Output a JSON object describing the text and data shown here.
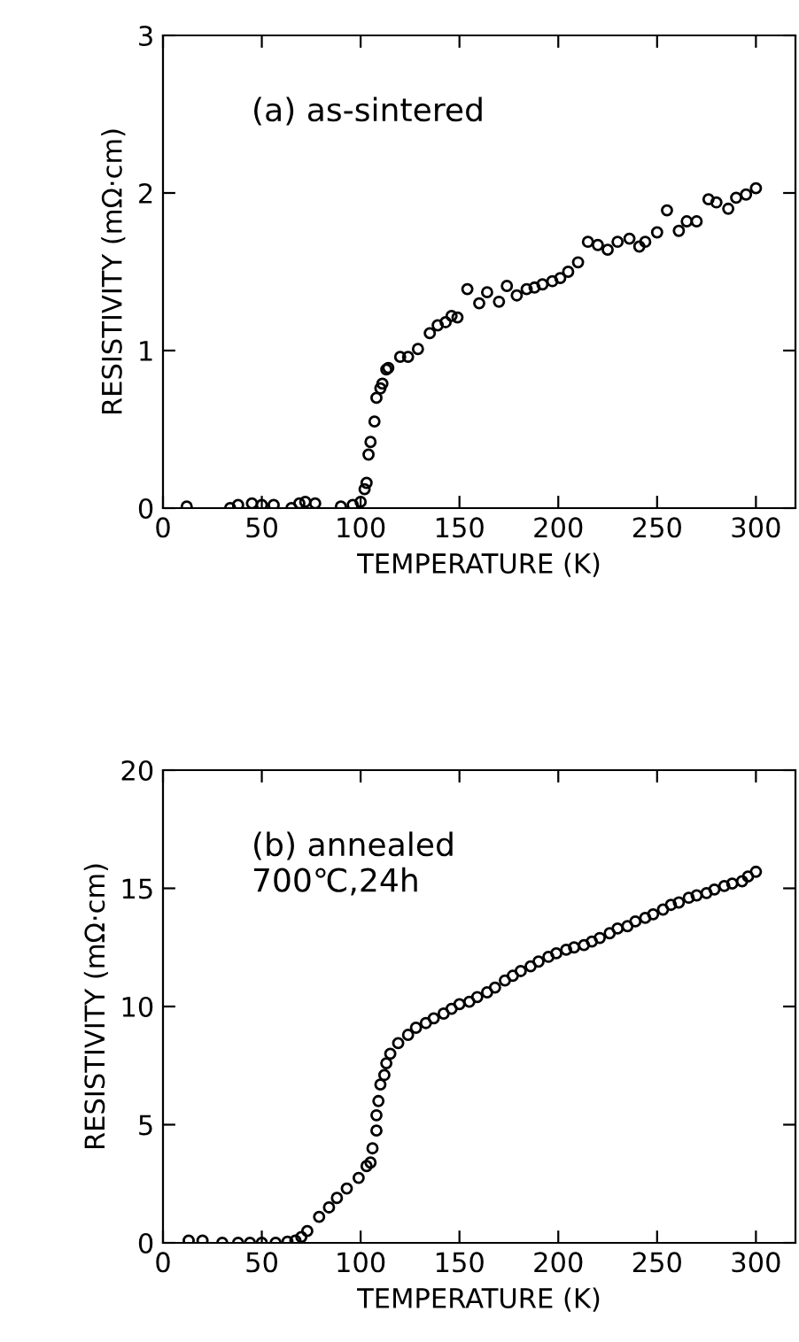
{
  "chart_data": [
    {
      "type": "scatter",
      "xlabel": "TEMPERATURE (K)",
      "ylabel": "RESISTIVITY (mΩ·cm)",
      "annotations": [
        "(a) as-sintered"
      ],
      "xlim": [
        0,
        320
      ],
      "xticks": [
        0,
        50,
        100,
        150,
        200,
        250,
        300
      ],
      "ylim": [
        0,
        3
      ],
      "yticks": [
        0,
        1,
        2,
        3
      ],
      "marker": "circle",
      "grid": false,
      "series": [
        {
          "color": "#000000",
          "x": [
            12,
            34,
            38,
            45,
            50,
            56,
            65,
            69,
            72,
            77,
            90,
            96,
            100,
            102,
            103,
            104,
            105,
            107,
            108,
            110,
            111,
            113,
            114,
            120,
            124,
            129,
            135,
            139,
            143,
            146,
            149,
            154,
            160,
            164,
            170,
            174,
            179,
            184,
            188,
            192,
            197,
            201,
            205,
            210,
            215,
            220,
            225,
            230,
            236,
            241,
            244,
            250,
            255,
            261,
            265,
            270,
            276,
            280,
            286,
            290,
            295,
            300
          ],
          "values": [
            0.01,
            0.0,
            0.02,
            0.03,
            0.02,
            0.02,
            0.0,
            0.03,
            0.04,
            0.03,
            0.01,
            0.02,
            0.04,
            0.12,
            0.16,
            0.34,
            0.42,
            0.55,
            0.7,
            0.76,
            0.79,
            0.88,
            0.89,
            0.96,
            0.96,
            1.01,
            1.11,
            1.16,
            1.18,
            1.22,
            1.21,
            1.39,
            1.3,
            1.37,
            1.31,
            1.41,
            1.35,
            1.39,
            1.4,
            1.42,
            1.44,
            1.46,
            1.5,
            1.56,
            1.69,
            1.67,
            1.64,
            1.69,
            1.71,
            1.66,
            1.69,
            1.75,
            1.89,
            1.76,
            1.82,
            1.82,
            1.96,
            1.94,
            1.9,
            1.97,
            1.99,
            2.03
          ]
        }
      ]
    },
    {
      "type": "scatter",
      "xlabel": "TEMPERATURE (K)",
      "ylabel": "RESISTIVITY (mΩ·cm)",
      "annotations": [
        "(b) annealed\n700℃,24h"
      ],
      "xlim": [
        0,
        320
      ],
      "xticks": [
        0,
        50,
        100,
        150,
        200,
        250,
        300
      ],
      "ylim": [
        0,
        20
      ],
      "yticks": [
        0,
        5,
        10,
        15,
        20
      ],
      "marker": "circle",
      "grid": false,
      "series": [
        {
          "color": "#000000",
          "x": [
            13,
            20,
            30,
            38,
            44,
            50,
            57,
            63,
            67,
            70,
            73,
            79,
            84,
            88,
            93,
            99,
            103,
            105,
            106,
            108,
            108,
            109,
            110,
            112,
            113,
            115,
            119,
            124,
            128,
            133,
            137,
            142,
            146,
            150,
            155,
            159,
            164,
            168,
            173,
            177,
            181,
            186,
            190,
            195,
            199,
            204,
            208,
            213,
            217,
            221,
            226,
            230,
            235,
            239,
            244,
            248,
            253,
            257,
            261,
            266,
            270,
            275,
            279,
            284,
            288,
            293,
            296,
            300
          ],
          "values": [
            0.1,
            0.1,
            0,
            0,
            0,
            0,
            0,
            0.05,
            0.1,
            0.25,
            0.5,
            1.1,
            1.5,
            1.9,
            2.3,
            2.75,
            3.25,
            3.4,
            4.0,
            4.75,
            5.4,
            6.0,
            6.7,
            7.1,
            7.6,
            8.0,
            8.45,
            8.8,
            9.1,
            9.3,
            9.5,
            9.7,
            9.9,
            10.1,
            10.2,
            10.4,
            10.6,
            10.8,
            11.1,
            11.3,
            11.5,
            11.7,
            11.9,
            12.1,
            12.25,
            12.4,
            12.5,
            12.6,
            12.75,
            12.9,
            13.1,
            13.3,
            13.4,
            13.6,
            13.75,
            13.9,
            14.1,
            14.3,
            14.4,
            14.6,
            14.7,
            14.8,
            14.95,
            15.1,
            15.2,
            15.3,
            15.5,
            15.7
          ]
        }
      ]
    }
  ]
}
